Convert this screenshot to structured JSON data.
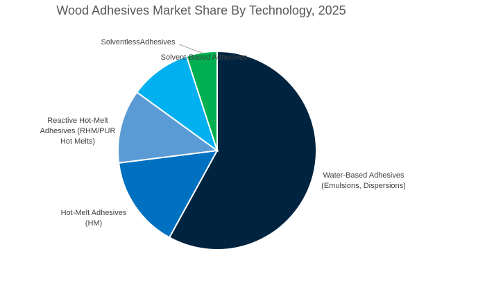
{
  "chart_data": {
    "type": "pie",
    "title": "Wood Adhesives Market Share By Technology, 2025",
    "unit": "percent",
    "start_angle_deg": 0,
    "direction": "clockwise",
    "slices": [
      {
        "name": "Water-Based Adhesives (Emulsions, Dispersions)",
        "label_lines": [
          "Water-Based Adhesives",
          "(Emulsions, Dispersions)"
        ],
        "value": 58,
        "color": "#002440"
      },
      {
        "name": "Hot-Melt Adhesives (HM)",
        "label_lines": [
          "Hot-Melt Adhesives",
          "(HM)"
        ],
        "value": 15,
        "color": "#0070c0"
      },
      {
        "name": "Reactive Hot-Melt Adhesives (RHM/PUR Hot Melts)",
        "label_lines": [
          "Reactive Hot-Melt",
          "Adhesives (RHM/PUR",
          "Hot Melts)"
        ],
        "value": 12,
        "color": "#5b9bd5"
      },
      {
        "name": "Solvent-Based Adhesives",
        "label_lines": [
          "Solvent-Based Adhesives"
        ],
        "value": 10,
        "color": "#00b0f0"
      },
      {
        "name": "SolventlessAdhesives",
        "label_lines": [
          "SolventlessAdhesives"
        ],
        "value": 5,
        "color": "#00b050"
      }
    ],
    "legend": "none",
    "data_labels": "category names outside/near slices"
  }
}
